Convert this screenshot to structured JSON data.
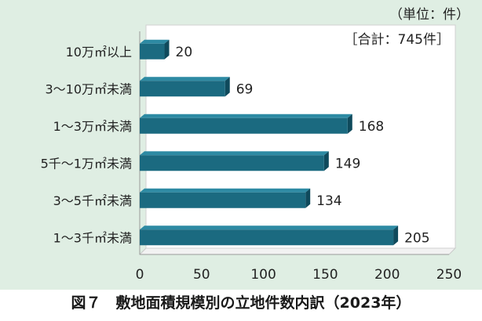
{
  "chart_data": {
    "type": "bar",
    "orientation": "horizontal",
    "categories": [
      "10万㎡以上",
      "3～10万㎡未満",
      "1～3万㎡未満",
      "5千～1万㎡未満",
      "3～5千㎡未満",
      "1～3千㎡未満"
    ],
    "values": [
      20,
      69,
      168,
      149,
      134,
      205
    ],
    "xlim": [
      0,
      250
    ],
    "xticks": [
      0,
      50,
      100,
      150,
      200,
      250
    ],
    "unit_note": "（単位：件）",
    "total_note": "［合計：745件］",
    "grid": false,
    "legend": "none"
  },
  "colors": {
    "bar": "#1b6a80",
    "bar_top": "#2d8aa3",
    "bar_side": "#0f4a5c",
    "background": "#dfeee3",
    "plot": "#ffffff"
  },
  "caption": "図７　敷地面積規模別の立地件数内訳（2023年）"
}
